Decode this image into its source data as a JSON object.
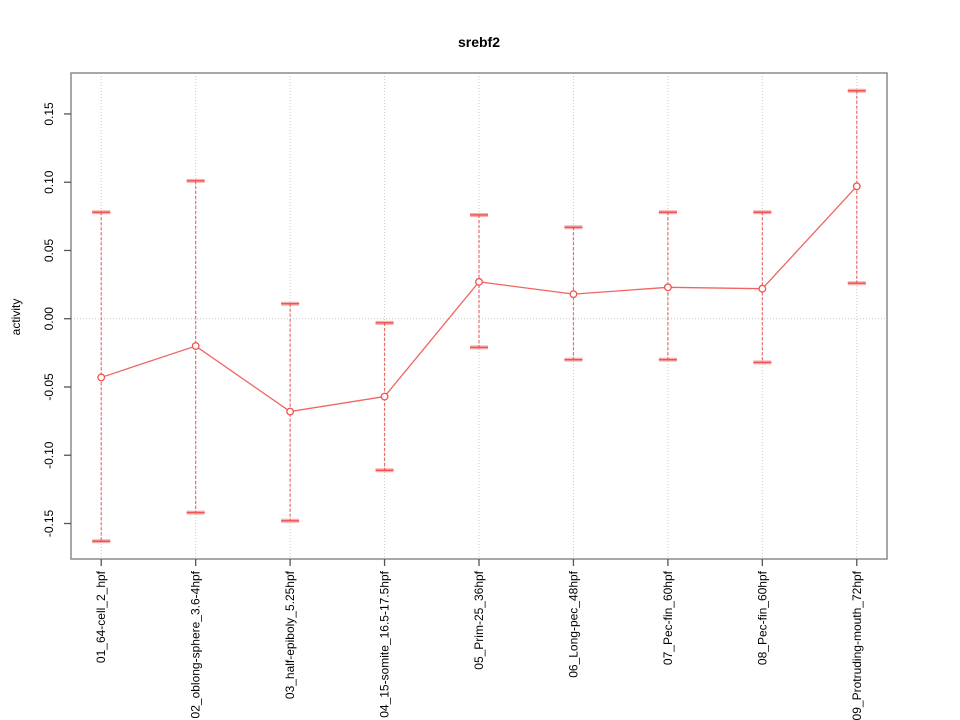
{
  "chart_data": {
    "type": "line",
    "title": "srebf2",
    "xlabel": "",
    "ylabel": "activity",
    "categories": [
      "01_64-cell_2_hpf",
      "02_oblong-sphere_3.6-4hpf",
      "03_half-epiboly_5.25hpf",
      "04_15-somite_16.5-17.5hpf",
      "05_Prim-25_36hpf",
      "06_Long-pec_48hpf",
      "07_Pec-fin_60hpf",
      "08_Pec-fin_60hpf",
      "09_Protruding-mouth_72hpf"
    ],
    "series": [
      {
        "name": "activity",
        "values": [
          -0.043,
          -0.02,
          -0.068,
          -0.057,
          0.027,
          0.018,
          0.023,
          0.022,
          0.097
        ],
        "error_upper": [
          0.078,
          0.101,
          0.011,
          -0.003,
          0.076,
          0.067,
          0.078,
          0.078,
          0.167
        ],
        "error_lower": [
          -0.163,
          -0.142,
          -0.148,
          -0.111,
          -0.021,
          -0.03,
          -0.03,
          -0.032,
          0.026
        ]
      }
    ],
    "yticks": [
      -0.15,
      -0.1,
      -0.05,
      0.0,
      0.05,
      0.1,
      0.15
    ],
    "ytick_labels": [
      "-0.15",
      "-0.10",
      "-0.05",
      "0.00",
      "0.05",
      "0.10",
      "0.15"
    ],
    "ylim": [
      -0.176,
      0.18
    ],
    "xlim": [
      0.68,
      9.32
    ],
    "grid": "vertical dotted gridline at each category, dotted horizontal line at y=0",
    "legend": "none",
    "colors": {
      "series": "#ef5350",
      "marker_fill": "#ffffff",
      "gridline": "#c9c9c9",
      "plot_border": "#8a8a8a",
      "tick": "#555555",
      "text": "#000000"
    },
    "tick_label_orientation": "vertical",
    "marker": "open-circle"
  }
}
